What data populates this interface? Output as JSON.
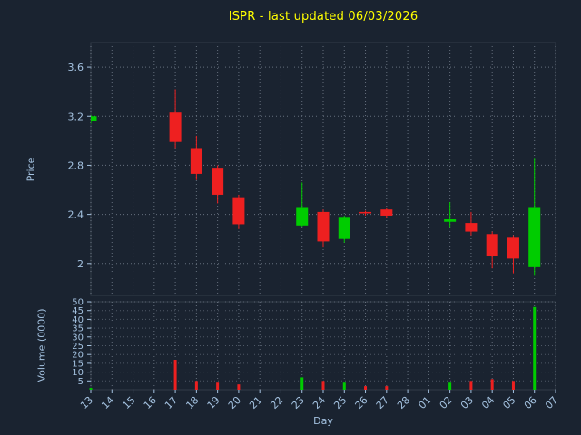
{
  "title": "ISPR - last updated 06/03/2026",
  "chart_data": {
    "type": "candlestick",
    "title": "ISPR - last updated 06/03/2026",
    "xlabel": "Day",
    "ylabel_price": "Price",
    "ylabel_volume": "Volume (0000)",
    "x_categories": [
      "13",
      "14",
      "15",
      "16",
      "17",
      "18",
      "19",
      "20",
      "21",
      "22",
      "23",
      "24",
      "25",
      "26",
      "27",
      "28",
      "01",
      "02",
      "03",
      "04",
      "05",
      "06",
      "07"
    ],
    "price_ticks": [
      2,
      2.4,
      2.8,
      3.2,
      3.6
    ],
    "price_ylim": [
      1.74,
      3.8
    ],
    "volume_ticks": [
      5,
      10,
      15,
      20,
      25,
      30,
      35,
      40,
      45,
      50
    ],
    "volume_ylim": [
      0,
      50
    ],
    "grid": true,
    "legend": false,
    "candles": [
      {
        "day": "13",
        "open": 3.16,
        "high": 3.21,
        "low": 3.14,
        "close": 3.2,
        "volume": 1
      },
      {
        "day": "17",
        "open": 3.23,
        "high": 3.42,
        "low": 2.94,
        "close": 2.99,
        "volume": 17
      },
      {
        "day": "18",
        "open": 2.94,
        "high": 3.04,
        "low": 2.68,
        "close": 2.73,
        "volume": 5
      },
      {
        "day": "19",
        "open": 2.78,
        "high": 2.8,
        "low": 2.49,
        "close": 2.56,
        "volume": 4
      },
      {
        "day": "20",
        "open": 2.54,
        "high": 2.56,
        "low": 2.28,
        "close": 2.32,
        "volume": 3
      },
      {
        "day": "23",
        "open": 2.31,
        "high": 2.66,
        "low": 2.3,
        "close": 2.46,
        "volume": 7
      },
      {
        "day": "24",
        "open": 2.42,
        "high": 2.44,
        "low": 2.13,
        "close": 2.18,
        "volume": 5
      },
      {
        "day": "25",
        "open": 2.2,
        "high": 2.39,
        "low": 2.17,
        "close": 2.38,
        "volume": 4
      },
      {
        "day": "26",
        "open": 2.42,
        "high": 2.43,
        "low": 2.39,
        "close": 2.41,
        "volume": 2
      },
      {
        "day": "27",
        "open": 2.44,
        "high": 2.45,
        "low": 2.37,
        "close": 2.39,
        "volume": 2
      },
      {
        "day": "02",
        "open": 2.34,
        "high": 2.5,
        "low": 2.29,
        "close": 2.36,
        "volume": 4
      },
      {
        "day": "03",
        "open": 2.33,
        "high": 2.42,
        "low": 2.23,
        "close": 2.26,
        "volume": 5
      },
      {
        "day": "04",
        "open": 2.24,
        "high": 2.26,
        "low": 1.96,
        "close": 2.06,
        "volume": 6
      },
      {
        "day": "05",
        "open": 2.21,
        "high": 2.23,
        "low": 1.92,
        "close": 2.04,
        "volume": 5
      },
      {
        "day": "06",
        "open": 1.97,
        "high": 2.86,
        "low": 1.9,
        "close": 2.46,
        "volume": 47
      }
    ],
    "colors": {
      "background": "#1a2330",
      "title": "#ffff00",
      "axis_text": "#a4c2e0",
      "grid": "#c0ccda",
      "up": "#00cc00",
      "down": "#ee2020"
    }
  }
}
